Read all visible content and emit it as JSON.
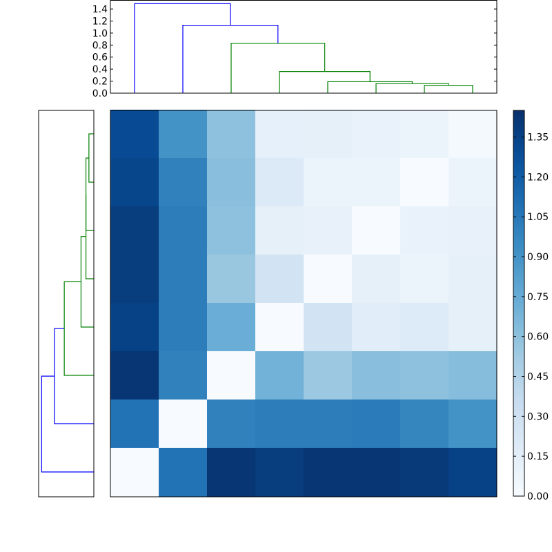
{
  "chart_data": [
    {
      "type": "dendrogram",
      "position": "top",
      "ylim": [
        0,
        1.55
      ],
      "yticks": [
        "0.0",
        "0.2",
        "0.4",
        "0.6",
        "0.8",
        "1.0",
        "1.2",
        "1.4"
      ],
      "link_colors": {
        "cluster": "#008000",
        "above_threshold": "#0000ff"
      },
      "leaf_count": 8,
      "merges": [
        {
          "left": 7,
          "right": 8,
          "height": 0.13,
          "color": "#008000"
        },
        {
          "left": 6,
          "right": "m1",
          "height": 0.16,
          "color": "#008000"
        },
        {
          "left": 5,
          "right": "m2",
          "height": 0.19,
          "color": "#008000"
        },
        {
          "left": 4,
          "right": "m3",
          "height": 0.36,
          "color": "#008000"
        },
        {
          "left": 3,
          "right": "m4",
          "height": 0.83,
          "color": "#008000"
        },
        {
          "left": 2,
          "right": "m5",
          "height": 1.13,
          "color": "#0000ff"
        },
        {
          "left": 1,
          "right": "m6",
          "height": 1.49,
          "color": "#0000ff"
        }
      ]
    },
    {
      "type": "dendrogram",
      "position": "left",
      "link_colors": {
        "cluster": "#008000",
        "above_threshold": "#0000ff"
      },
      "leaf_count": 8,
      "note_orientation": "leaf 1 at bottom",
      "merges": [
        {
          "left": 7,
          "right": 8,
          "height": 0.05,
          "color": "#008000"
        },
        {
          "left": 6,
          "right": "m1",
          "height": 0.08,
          "color": "#008000"
        },
        {
          "left": 5,
          "right": "m2",
          "height": 0.08,
          "color": "#008000"
        },
        {
          "left": 4,
          "right": "m3",
          "height": 0.13,
          "color": "#008000"
        },
        {
          "left": 3,
          "right": "m4",
          "height": 0.3,
          "color": "#008000"
        },
        {
          "left": 2,
          "right": "m5",
          "height": 0.4,
          "color": "#0000ff"
        },
        {
          "left": 1,
          "right": "m6",
          "height": 0.53,
          "color": "#0000ff"
        }
      ]
    },
    {
      "type": "heatmap",
      "colormap": "Blues",
      "vmin": 0.0,
      "vmax": 1.45,
      "colorbar_ticks": [
        "0.00",
        "0.15",
        "0.30",
        "0.45",
        "0.60",
        "0.75",
        "0.90",
        "1.05",
        "1.20",
        "1.35"
      ],
      "rows_top_to_bottom": [
        [
          1.3,
          0.9,
          0.6,
          0.12,
          0.13,
          0.1,
          0.09,
          0.02
        ],
        [
          1.33,
          1.0,
          0.62,
          0.2,
          0.08,
          0.09,
          0.0,
          0.08
        ],
        [
          1.38,
          1.02,
          0.6,
          0.13,
          0.11,
          0.0,
          0.1,
          0.11
        ],
        [
          1.38,
          1.02,
          0.56,
          0.27,
          0.0,
          0.13,
          0.08,
          0.13
        ],
        [
          1.35,
          1.02,
          0.73,
          0.0,
          0.27,
          0.16,
          0.19,
          0.13
        ],
        [
          1.42,
          1.0,
          0.0,
          0.7,
          0.55,
          0.62,
          0.6,
          0.63
        ],
        [
          1.08,
          0.0,
          1.0,
          1.02,
          1.02,
          1.03,
          0.98,
          0.9
        ],
        [
          0.0,
          1.08,
          1.42,
          1.38,
          1.42,
          1.42,
          1.4,
          1.35
        ]
      ]
    }
  ]
}
